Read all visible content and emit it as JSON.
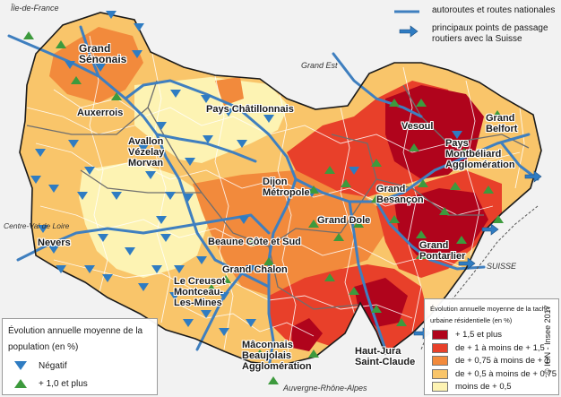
{
  "map": {
    "colors": {
      "water_and_roads": "#3f7fbf",
      "region_border": "#1a1a1a",
      "class_1": "#b0041c",
      "class_2": "#e8402a",
      "class_3": "#f28a3c",
      "class_4": "#f9c56a",
      "class_5": "#fdf3b3",
      "triangle_down": "#2f7cc2",
      "triangle_up": "#3d9a3d",
      "outside": "#f2f2f2"
    },
    "neighbours": {
      "ile_de_france": "Île-de-France",
      "grand_est": "Grand Est",
      "centre_val_de_loire": "Centre-Val de Loire",
      "auvergne_rhone_alpes": "Auvergne-Rhône-Alpes",
      "suisse": "SUISSE"
    },
    "territories": {
      "grand_senonais": "Grand Sénonais",
      "auxerrois": "Auxerrois",
      "pays_chatillonnais": "Pays Châtillonnais",
      "avallon_vezelay_morvan": "Avallon Vézelay Morvan",
      "vesoul": "Vesoul",
      "grand_belfort": "Grand Belfort",
      "pays_montbeliard": "Pays Montbéliard Agglomération",
      "dijon": "Dijon Métropole",
      "grand_besancon": "Grand Besançon",
      "grand_dole": "Grand Dole",
      "nevers": "Nevers",
      "beaune": "Beaune Côte et Sud",
      "grand_chalon": "Grand Chalon",
      "grand_pontarlier": "Grand Pontarlier",
      "le_creusot": "Le Creusot Montceau-Les-Mines",
      "maconnais": "Mâconnais Beaujolais Agglomération",
      "haut_jura": "Haut-Jura Saint-Claude"
    }
  },
  "legend_top": {
    "roads": "autoroutes et routes nationales",
    "crossing": "principaux points de passage routiers avec la Suisse"
  },
  "legend_population": {
    "title": "Évolution annuelle moyenne de la population (en %)",
    "negative": "Négatif",
    "positive": "+ 1,0 et plus"
  },
  "legend_urban": {
    "title": "Évolution annuelle moyenne de la tache urbaine résidentielle (en %)",
    "classes": [
      "+ 1,5 et plus",
      "de + 1 à moins de + 1,5",
      "de + 0,75 à moins de + 1",
      "de + 0,5 à moins de + 0,75",
      "moins de + 0,5"
    ]
  },
  "credit": "© IGN - Insee 2017"
}
